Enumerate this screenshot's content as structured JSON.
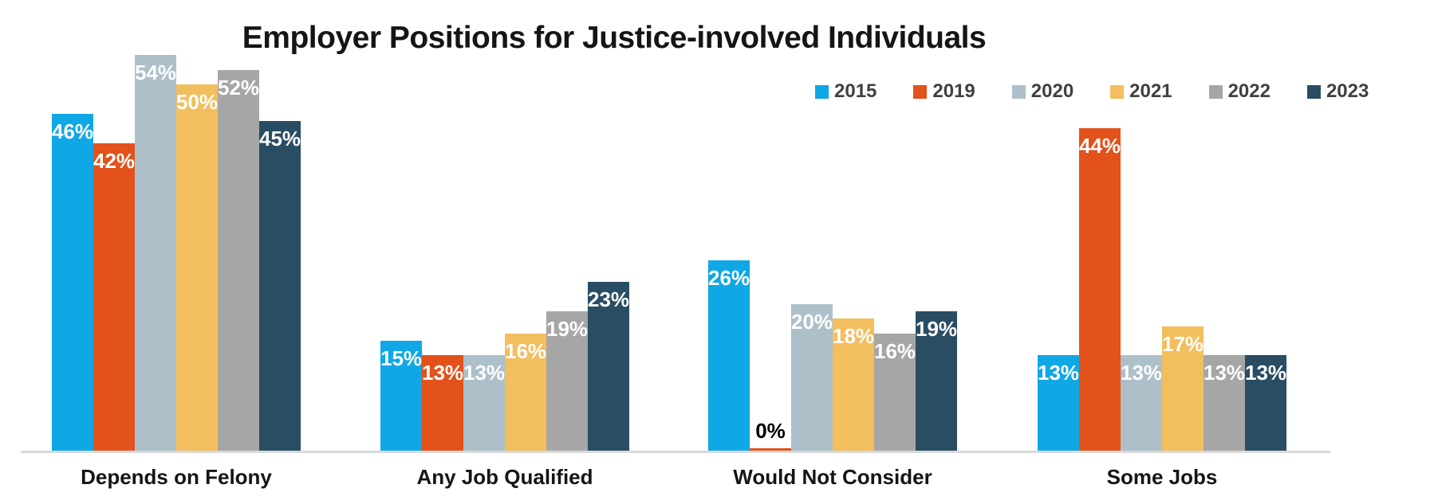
{
  "chart_data": {
    "type": "bar",
    "title": "Employer Positions for Justice-involved Individuals",
    "categories": [
      "Depends on Felony",
      "Any Job Qualified",
      "Would Not Consider",
      "Some Jobs"
    ],
    "series": [
      {
        "name": "2015",
        "color": "#0FA7E6",
        "values": [
          46,
          15,
          26,
          13
        ]
      },
      {
        "name": "2019",
        "color": "#E2521A",
        "values": [
          42,
          13,
          0,
          44
        ]
      },
      {
        "name": "2020",
        "color": "#ADC0CA",
        "values": [
          54,
          13,
          20,
          13
        ]
      },
      {
        "name": "2021",
        "color": "#F3BE5E",
        "values": [
          50,
          16,
          18,
          17
        ]
      },
      {
        "name": "2022",
        "color": "#A6A6A6",
        "values": [
          52,
          19,
          16,
          13
        ]
      },
      {
        "name": "2023",
        "color": "#294D63",
        "values": [
          45,
          23,
          19,
          13
        ]
      }
    ],
    "value_suffix": "%",
    "ylim": [
      0,
      60
    ],
    "grid": false,
    "legend_position": "top-right",
    "data_labels": "inside-end",
    "data_label_color": "#ffffff",
    "zero_label_color": "#000000",
    "axis_line_color": "#d9d9d9"
  }
}
